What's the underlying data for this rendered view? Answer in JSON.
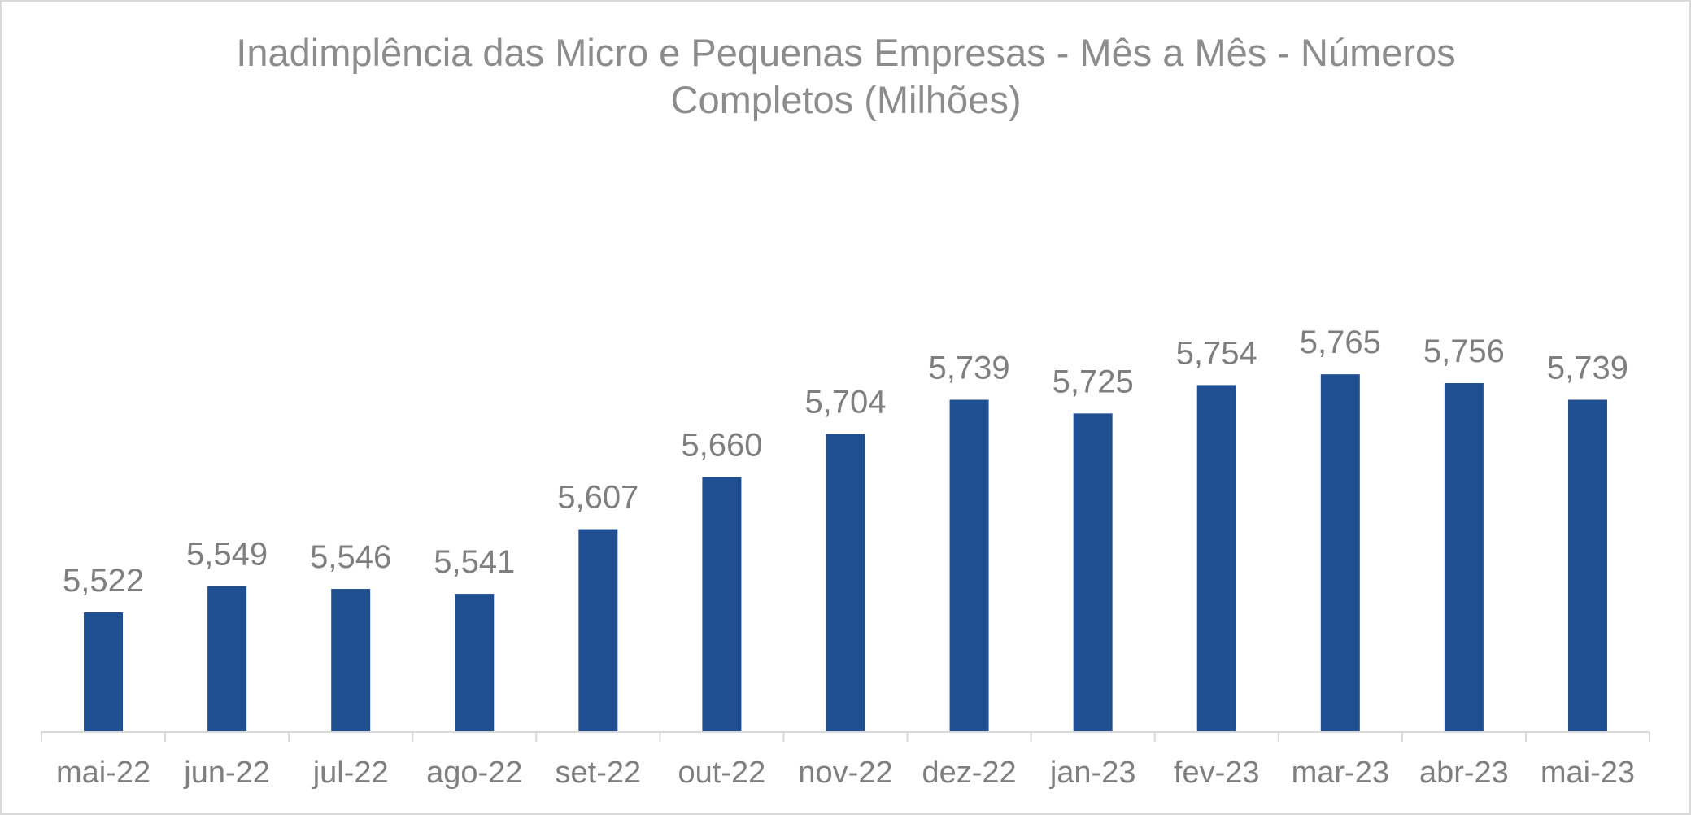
{
  "chart_data": {
    "type": "bar",
    "title": "Inadimplência das Micro e Pequenas Empresas - Mês a Mês - Números Completos (Milhões)",
    "xlabel": "",
    "ylabel": "",
    "categories": [
      "mai-22",
      "jun-22",
      "jul-22",
      "ago-22",
      "set-22",
      "out-22",
      "nov-22",
      "dez-22",
      "jan-23",
      "fev-23",
      "mar-23",
      "abr-23",
      "mai-23"
    ],
    "values": [
      5.522,
      5.549,
      5.546,
      5.541,
      5.607,
      5.66,
      5.704,
      5.739,
      5.725,
      5.754,
      5.765,
      5.756,
      5.739
    ],
    "data_labels": [
      "5,522",
      "5,549",
      "5,546",
      "5,541",
      "5,607",
      "5,660",
      "5,704",
      "5,739",
      "5,725",
      "5,754",
      "5,765",
      "5,756",
      "5,739"
    ],
    "ylim": [
      5.4,
      5.8
    ],
    "y_axis_visible": false,
    "grid": false,
    "legend": "none",
    "colors": {
      "bar": "#1f4e91",
      "axis": "#d9d9d9",
      "text": "#7f7f7f",
      "title": "#8c8c8c"
    }
  }
}
